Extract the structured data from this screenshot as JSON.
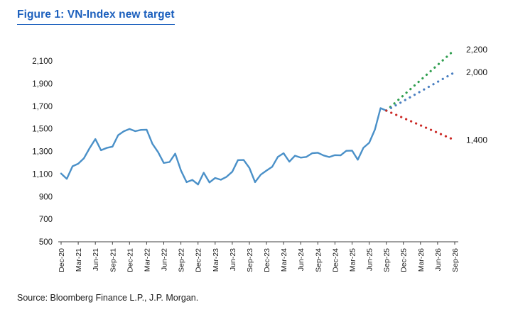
{
  "figure": {
    "title": "Figure 1: VN-Index new target",
    "source": "Source: Bloomberg Finance L.P., J.P. Morgan."
  },
  "colors": {
    "title_blue": "#1b5fbd",
    "line_blue": "#4a90c8",
    "projection_blue": "#4a7fc1",
    "projection_green": "#2f9e4f",
    "projection_red": "#cc2b27",
    "axis": "#404040",
    "text": "#1a1a1a"
  },
  "chart_data": {
    "type": "line",
    "title": "Figure 1: VN-Index new target",
    "xlabel": "",
    "ylabel": "",
    "ylim": [
      500,
      2250
    ],
    "yticks": [
      500,
      700,
      900,
      1100,
      1300,
      1500,
      1700,
      1900,
      2100
    ],
    "grid": false,
    "legend": "none",
    "x_unit": "months since Dec-2020",
    "x_tick_months": [
      0,
      3,
      6,
      9,
      12,
      15,
      18,
      21,
      24,
      27,
      30,
      33,
      36,
      39,
      42,
      45,
      48,
      51,
      54,
      57,
      60,
      63,
      66,
      69
    ],
    "x_tick_labels": [
      "Dec-20",
      "Mar-21",
      "Jun-21",
      "Sep-21",
      "Dec-21",
      "Mar-22",
      "Jun-22",
      "Sep-22",
      "Dec-22",
      "Mar-23",
      "Jun-23",
      "Sep-23",
      "Dec-23",
      "Mar-24",
      "Jun-24",
      "Sep-24",
      "Dec-24",
      "Mar-25",
      "Jun-25",
      "Sep-25",
      "Dec-25",
      "Mar-26",
      "Jun-26",
      "Sep-26"
    ],
    "series": [
      {
        "id": "vn_index",
        "name": "VN-Index",
        "style": "solid",
        "color": "#4a90c8",
        "months_from": 0,
        "values": [
          1104,
          1057,
          1168,
          1191,
          1239,
          1328,
          1409,
          1310,
          1331,
          1342,
          1444,
          1478,
          1498,
          1479,
          1490,
          1492,
          1367,
          1293,
          1198,
          1206,
          1280,
          1132,
          1028,
          1048,
          1007,
          1111,
          1025,
          1065,
          1049,
          1075,
          1120,
          1223,
          1224,
          1154,
          1028,
          1094,
          1130,
          1164,
          1252,
          1284,
          1209,
          1262,
          1245,
          1251,
          1284,
          1288,
          1264,
          1250,
          1267,
          1265,
          1305,
          1307,
          1226,
          1332,
          1376,
          1492,
          1683,
          1661
        ]
      },
      {
        "id": "target_2200",
        "name": "Target 2,200",
        "style": "dotted",
        "color": "#2f9e4f",
        "months": [
          57,
          69
        ],
        "values": [
          1661,
          2200
        ]
      },
      {
        "id": "target_2000",
        "name": "Target 2,000",
        "style": "dotted",
        "color": "#4a7fc1",
        "months": [
          57,
          69
        ],
        "values": [
          1661,
          2000
        ]
      },
      {
        "id": "target_1400",
        "name": "Target 1,400",
        "style": "dotted",
        "color": "#cc2b27",
        "months": [
          57,
          69
        ],
        "values": [
          1661,
          1400
        ]
      }
    ],
    "annotations": [
      {
        "text": "2,200",
        "value": 2200
      },
      {
        "text": "2,000",
        "value": 2000
      },
      {
        "text": "1,400",
        "value": 1400
      }
    ]
  }
}
